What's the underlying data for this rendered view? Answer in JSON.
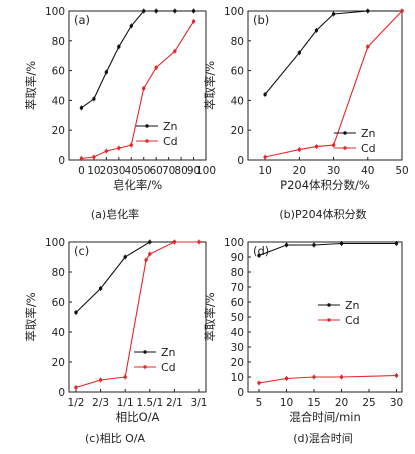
{
  "chart_data": [
    {
      "type": "line",
      "panel_label": "(a)",
      "caption": "(a)皂化率",
      "xlabel": "皂化率/%",
      "ylabel": "萃取率/%",
      "xlim": [
        -10,
        100
      ],
      "ylim": [
        0,
        100
      ],
      "xticks": [
        0,
        10,
        20,
        30,
        40,
        50,
        60,
        70,
        80,
        90,
        100
      ],
      "yticks": [
        0,
        20,
        40,
        60,
        80,
        100
      ],
      "legend": "center-right",
      "series": [
        {
          "name": "Zn",
          "color": "#111111",
          "x": [
            0,
            10,
            20,
            30,
            40,
            50,
            60,
            75,
            90
          ],
          "y": [
            35,
            41,
            59,
            76,
            90,
            100,
            100,
            100,
            100
          ]
        },
        {
          "name": "Cd",
          "color": "#e8262a",
          "x": [
            0,
            10,
            20,
            30,
            40,
            50,
            60,
            75,
            90
          ],
          "y": [
            1,
            2,
            6,
            8,
            10,
            48,
            62,
            73,
            93
          ]
        }
      ]
    },
    {
      "type": "line",
      "panel_label": "(b)",
      "caption": "(b)P204体积分数",
      "xlabel": "P204体积分数/%",
      "ylabel": "萃取率/%",
      "xlim": [
        5,
        50
      ],
      "ylim": [
        0,
        100
      ],
      "xticks": [
        10,
        20,
        30,
        40,
        50
      ],
      "yticks": [
        0,
        20,
        40,
        60,
        80,
        100
      ],
      "legend": "center-right",
      "series": [
        {
          "name": "Zn",
          "color": "#111111",
          "x": [
            10,
            20,
            25,
            30,
            40,
            50
          ],
          "y": [
            44,
            72,
            87,
            98,
            100,
            100
          ]
        },
        {
          "name": "Cd",
          "color": "#e8262a",
          "x": [
            10,
            20,
            25,
            30,
            40,
            50
          ],
          "y": [
            2,
            7,
            9,
            10,
            76,
            100
          ]
        }
      ]
    },
    {
      "type": "line",
      "panel_label": "(c)",
      "caption": "(c)相比 O/A",
      "xlabel": "相比O/A",
      "ylabel": "萃取率/%",
      "categories": [
        "1/2",
        "2/3",
        "1/1",
        "1.5/1",
        "2/1",
        "3/1"
      ],
      "ylim": [
        0,
        100
      ],
      "yticks": [
        0,
        20,
        40,
        60,
        80,
        100
      ],
      "legend": "center-right",
      "series": [
        {
          "name": "Zn",
          "color": "#111111",
          "x": [
            0,
            1,
            2,
            3,
            4
          ],
          "y": [
            53,
            69,
            90,
            100,
            100
          ]
        },
        {
          "name": "Cd",
          "color": "#e8262a",
          "x": [
            0,
            1,
            2,
            2.85,
            3,
            4,
            5
          ],
          "y": [
            3,
            8,
            10,
            88,
            92,
            100,
            100
          ]
        }
      ]
    },
    {
      "type": "line",
      "panel_label": "(d)",
      "caption": "(d)混合时间",
      "xlabel": "混合时间/min",
      "ylabel": "萃取率/%",
      "xlim": [
        3,
        31
      ],
      "ylim": [
        0,
        100
      ],
      "xticks": [
        5,
        10,
        15,
        20,
        25,
        30
      ],
      "yticks": [
        0,
        10,
        20,
        30,
        40,
        50,
        60,
        70,
        80,
        90,
        100
      ],
      "legend": "center-right",
      "series": [
        {
          "name": "Zn",
          "color": "#111111",
          "x": [
            5,
            10,
            15,
            20,
            30
          ],
          "y": [
            91,
            98,
            98,
            99,
            99
          ]
        },
        {
          "name": "Cd",
          "color": "#e8262a",
          "x": [
            5,
            10,
            15,
            20,
            30
          ],
          "y": [
            6,
            9,
            10,
            10,
            11
          ]
        }
      ]
    }
  ]
}
